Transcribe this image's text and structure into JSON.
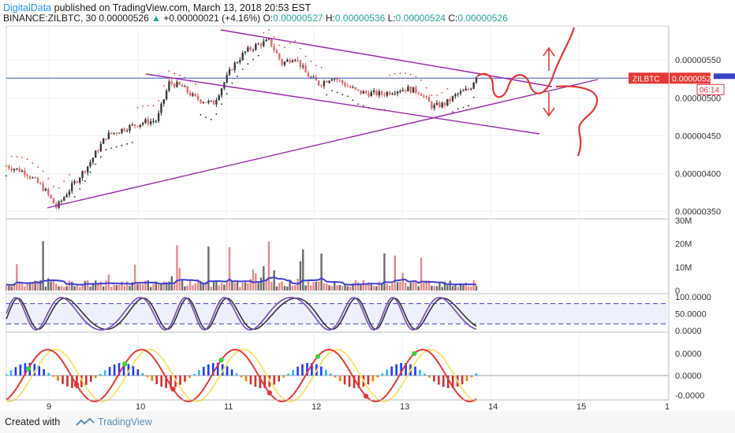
{
  "header": {
    "author": "DigitalData",
    "published": " published on TradingView.com, March 13, 2018 20:53 EST"
  },
  "ohlc": {
    "symbol": "BINANCE:ZILBTC, 30",
    "last": "0.00000526",
    "change_arrow": "▲",
    "change": "+0.00000021 (+4.16%)",
    "o_label": "O:",
    "o": "0.00000527",
    "h_label": "H:",
    "h": "0.00000536",
    "l_label": "L:",
    "l": "0.00000524",
    "c_label": "C:",
    "c": "0.00000526"
  },
  "footer": {
    "created": "Created with",
    "brand": "TradingView"
  },
  "colors": {
    "up": "#26a69a",
    "down": "#ef5350",
    "price_line": "#3f51b5",
    "trendline": "#9c27b0",
    "annotation": "#e53935",
    "last_badge": "#e53935",
    "stoch": "#7e57c2",
    "volume_ma": "#3f3fd6"
  },
  "chart_data": [
    {
      "type": "candlestick",
      "symbol": "ZILBTC",
      "ylim": [
        3.4e-06,
        5.95e-06
      ],
      "y_ticks": [
        "0.00000350",
        "0.00000400",
        "0.00000450",
        "0.00000500",
        "0.00000550"
      ],
      "x_ticks": [
        "9",
        "10",
        "11",
        "12",
        "13",
        "14",
        "15",
        "1"
      ],
      "last_price_label": "0.00000526",
      "timer_label": "06:14",
      "price_points": [
        [
          0.0,
          4.1e-06
        ],
        [
          0.3,
          4.02e-06
        ],
        [
          0.6,
          3.8e-06
        ],
        [
          0.8,
          3.55e-06
        ],
        [
          1.0,
          3.78e-06
        ],
        [
          1.3,
          4.1e-06
        ],
        [
          1.6,
          4.5e-06
        ],
        [
          1.9,
          4.6e-06
        ],
        [
          2.2,
          4.68e-06
        ],
        [
          2.4,
          4.7e-06
        ],
        [
          2.6,
          5.2e-06
        ],
        [
          2.8,
          5.15e-06
        ],
        [
          3.0,
          5e-06
        ],
        [
          3.3,
          4.92e-06
        ],
        [
          3.6,
          5.4e-06
        ],
        [
          3.8,
          5.6e-06
        ],
        [
          4.0,
          5.7e-06
        ],
        [
          4.2,
          5.75e-06
        ],
        [
          4.4,
          5.45e-06
        ],
        [
          4.6,
          5.55e-06
        ],
        [
          4.8,
          5.3e-06
        ],
        [
          5.0,
          5.18e-06
        ],
        [
          5.2,
          5.28e-06
        ],
        [
          5.4,
          5.18e-06
        ],
        [
          5.6,
          5.08e-06
        ],
        [
          5.8,
          5.06e-06
        ],
        [
          6.0,
          5.05e-06
        ],
        [
          6.2,
          5.1e-06
        ],
        [
          6.4,
          5.12e-06
        ],
        [
          6.6,
          5.08e-06
        ],
        [
          6.8,
          4.88e-06
        ],
        [
          7.0,
          4.92e-06
        ],
        [
          7.2,
          5.05e-06
        ],
        [
          7.4,
          5.12e-06
        ],
        [
          7.5,
          5.3e-06
        ]
      ]
    },
    {
      "type": "bar",
      "name": "Volume",
      "y_ticks": [
        "0",
        "10M",
        "20M",
        "30M"
      ],
      "ylim": [
        0,
        30000000
      ]
    },
    {
      "type": "line",
      "name": "Stochastic RSI",
      "y_ticks": [
        "0.0000",
        "50.0000",
        "100.0000"
      ],
      "ylim": [
        0,
        100
      ],
      "bands": [
        20,
        80
      ]
    },
    {
      "type": "area",
      "name": "Momentum oscillator",
      "y_ticks": [
        "-0.0000",
        "0.0000",
        "0.0000"
      ]
    }
  ]
}
